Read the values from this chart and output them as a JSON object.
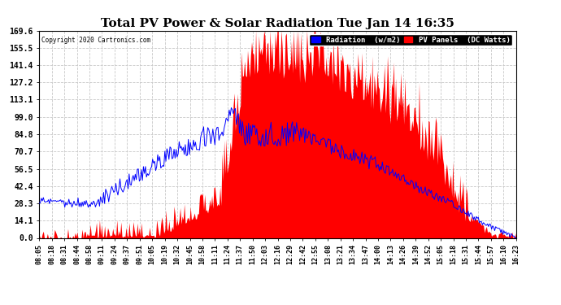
{
  "title": "Total PV Power & Solar Radiation Tue Jan 14 16:35",
  "copyright": "Copyright 2020 Cartronics.com",
  "legend_blue": "Radiation  (w/m2)",
  "legend_red": "PV Panels  (DC Watts)",
  "background_color": "#ffffff",
  "plot_bg_color": "#ffffff",
  "grid_color": "#c8c8c8",
  "yticks": [
    0.0,
    14.1,
    28.3,
    42.4,
    56.5,
    70.7,
    84.8,
    99.0,
    113.1,
    127.2,
    141.4,
    155.5,
    169.6
  ],
  "xtick_labels": [
    "08:05",
    "08:18",
    "08:31",
    "08:44",
    "08:58",
    "09:11",
    "09:24",
    "09:37",
    "09:51",
    "10:05",
    "10:19",
    "10:32",
    "10:45",
    "10:58",
    "11:11",
    "11:24",
    "11:37",
    "11:50",
    "12:03",
    "12:16",
    "12:29",
    "12:42",
    "12:55",
    "13:08",
    "13:21",
    "13:34",
    "13:47",
    "14:00",
    "14:13",
    "14:26",
    "14:39",
    "14:52",
    "15:05",
    "15:18",
    "15:31",
    "15:44",
    "15:57",
    "16:10",
    "16:23"
  ],
  "ymax": 169.6,
  "ymin": 0.0,
  "red_color": "#ff0000",
  "blue_color": "#0000ff",
  "blue_bg": "#0000ff",
  "red_bg": "#ff0000"
}
